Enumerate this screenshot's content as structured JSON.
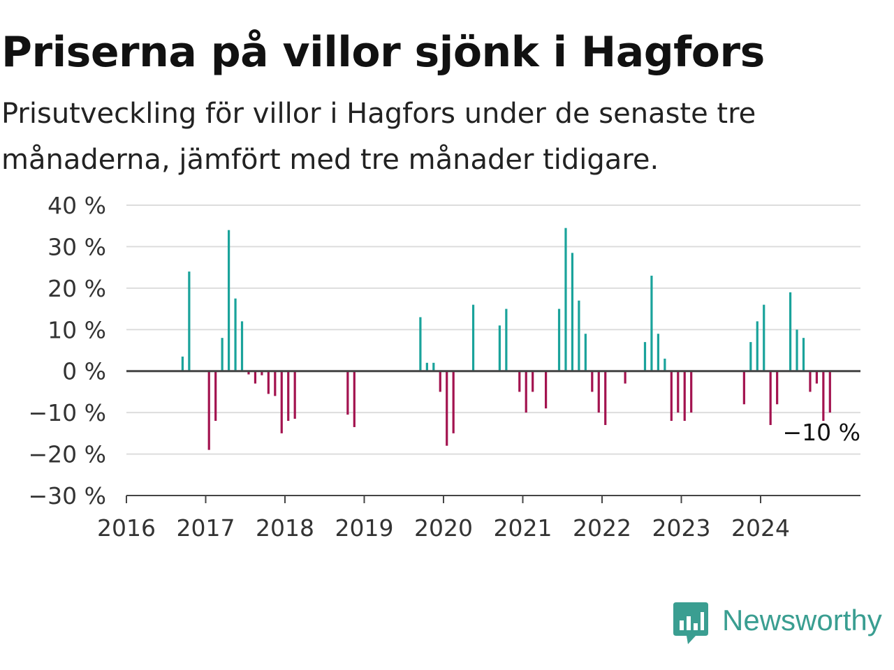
{
  "title": "Priserna på villor sjönk i Hagfors",
  "subtitle": "Prisutveckling för villor i Hagfors under de senaste tre månaderna, jämfört med tre månader tidigare.",
  "brand": {
    "name": "Newsworthy",
    "icon": "newsworthy-logo-icon",
    "color": "#3a9e91"
  },
  "colors": {
    "positive": "#1aa39b",
    "negative": "#a3134f",
    "grid": "#dddddd",
    "zero": "#444444"
  },
  "chart_data": {
    "type": "bar",
    "title": "Priserna på villor sjönk i Hagfors",
    "subtitle": "Prisutveckling för villor i Hagfors under de senaste tre månaderna, jämfört med tre månader tidigare.",
    "xlabel": "",
    "ylabel": "",
    "ylim": [
      -30,
      40
    ],
    "xlim": [
      "2016-01",
      "2025-04"
    ],
    "grid": true,
    "y_ticks": [
      40,
      30,
      20,
      10,
      0,
      -10,
      -20,
      -30
    ],
    "y_tick_labels": [
      "40 %",
      "30 %",
      "20 %",
      "10 %",
      "0 %",
      "−10 %",
      "−20 %",
      "−30 %"
    ],
    "x_tick_labels": [
      "2016",
      "2017",
      "2018",
      "2019",
      "2020",
      "2021",
      "2022",
      "2023",
      "2024"
    ],
    "annotation": {
      "text": "−10 %",
      "month": "2024-11",
      "value": -10
    },
    "series": [
      {
        "values": [
          {
            "month": "2016-09",
            "value": 3.5
          },
          {
            "month": "2016-10",
            "value": 24
          },
          {
            "month": "2017-01",
            "value": -19
          },
          {
            "month": "2017-02",
            "value": -12
          },
          {
            "month": "2017-03",
            "value": 8
          },
          {
            "month": "2017-04",
            "value": 34
          },
          {
            "month": "2017-05",
            "value": 17.5
          },
          {
            "month": "2017-06",
            "value": 12
          },
          {
            "month": "2017-07",
            "value": -0.8
          },
          {
            "month": "2017-08",
            "value": -3
          },
          {
            "month": "2017-09",
            "value": -1
          },
          {
            "month": "2017-10",
            "value": -5.5
          },
          {
            "month": "2017-11",
            "value": -6
          },
          {
            "month": "2017-12",
            "value": -15
          },
          {
            "month": "2018-01",
            "value": -12
          },
          {
            "month": "2018-02",
            "value": -11.5
          },
          {
            "month": "2018-10",
            "value": -10.5
          },
          {
            "month": "2018-11",
            "value": -13.5
          },
          {
            "month": "2019-09",
            "value": 13
          },
          {
            "month": "2019-10",
            "value": 2
          },
          {
            "month": "2019-11",
            "value": 2
          },
          {
            "month": "2019-12",
            "value": -5
          },
          {
            "month": "2020-01",
            "value": -18
          },
          {
            "month": "2020-02",
            "value": -15
          },
          {
            "month": "2020-05",
            "value": 16
          },
          {
            "month": "2020-09",
            "value": 11
          },
          {
            "month": "2020-10",
            "value": 15
          },
          {
            "month": "2020-12",
            "value": -5
          },
          {
            "month": "2021-01",
            "value": -10
          },
          {
            "month": "2021-02",
            "value": -5
          },
          {
            "month": "2021-04",
            "value": -9
          },
          {
            "month": "2021-06",
            "value": 15
          },
          {
            "month": "2021-07",
            "value": 34.5
          },
          {
            "month": "2021-08",
            "value": 28.5
          },
          {
            "month": "2021-09",
            "value": 17
          },
          {
            "month": "2021-10",
            "value": 9
          },
          {
            "month": "2021-11",
            "value": -5
          },
          {
            "month": "2021-12",
            "value": -10
          },
          {
            "month": "2022-01",
            "value": -13
          },
          {
            "month": "2022-04",
            "value": -3
          },
          {
            "month": "2022-07",
            "value": 7
          },
          {
            "month": "2022-08",
            "value": 23
          },
          {
            "month": "2022-09",
            "value": 9
          },
          {
            "month": "2022-10",
            "value": 3
          },
          {
            "month": "2022-11",
            "value": -12
          },
          {
            "month": "2022-12",
            "value": -10
          },
          {
            "month": "2023-01",
            "value": -12
          },
          {
            "month": "2023-02",
            "value": -10
          },
          {
            "month": "2023-10",
            "value": -8
          },
          {
            "month": "2023-11",
            "value": 7
          },
          {
            "month": "2023-12",
            "value": 12
          },
          {
            "month": "2024-01",
            "value": 16
          },
          {
            "month": "2024-02",
            "value": -13
          },
          {
            "month": "2024-03",
            "value": -8
          },
          {
            "month": "2024-05",
            "value": 19
          },
          {
            "month": "2024-06",
            "value": 10
          },
          {
            "month": "2024-07",
            "value": 8
          },
          {
            "month": "2024-08",
            "value": -5
          },
          {
            "month": "2024-09",
            "value": -3
          },
          {
            "month": "2024-10",
            "value": -12
          },
          {
            "month": "2024-11",
            "value": -10
          }
        ]
      }
    ]
  }
}
